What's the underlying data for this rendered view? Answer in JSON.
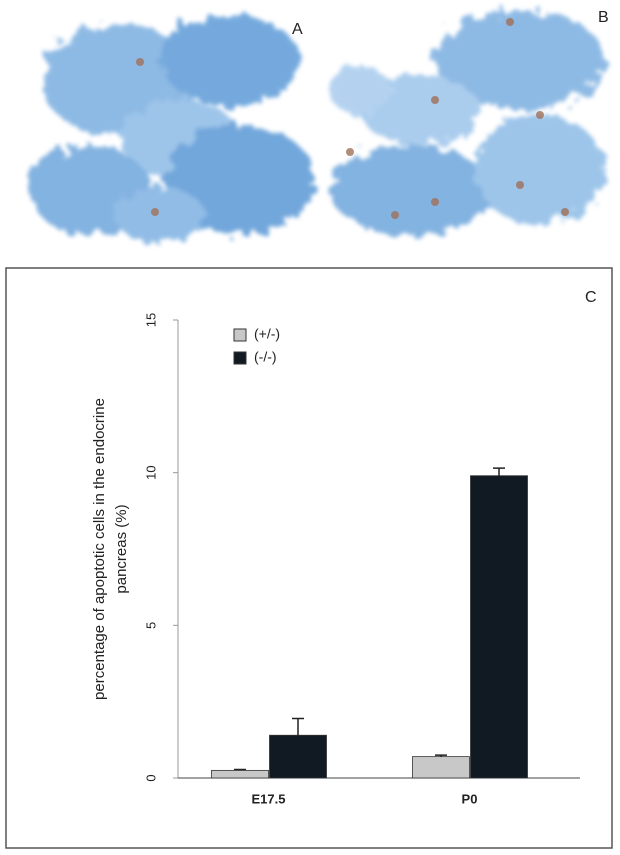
{
  "panel_labels": [
    "A",
    "B",
    "C"
  ],
  "chart_data": {
    "type": "bar",
    "ylabel": [
      "percentage of apoptotic cells in the endocrine",
      "pancreas (%)"
    ],
    "categories": [
      "E17.5",
      "P0"
    ],
    "series": [
      {
        "name": "(+/-)",
        "color": "#c8c8c8",
        "values": [
          0.25,
          0.7
        ],
        "errors": [
          0.03,
          0.05
        ]
      },
      {
        "name": "(-/-)",
        "color": "#111a22",
        "values": [
          1.4,
          9.9
        ],
        "errors": [
          0.55,
          0.25
        ]
      }
    ],
    "ylim": [
      0,
      15
    ],
    "yticks": [
      0,
      5,
      10,
      15
    ],
    "grid": false,
    "legend": "top-left"
  }
}
